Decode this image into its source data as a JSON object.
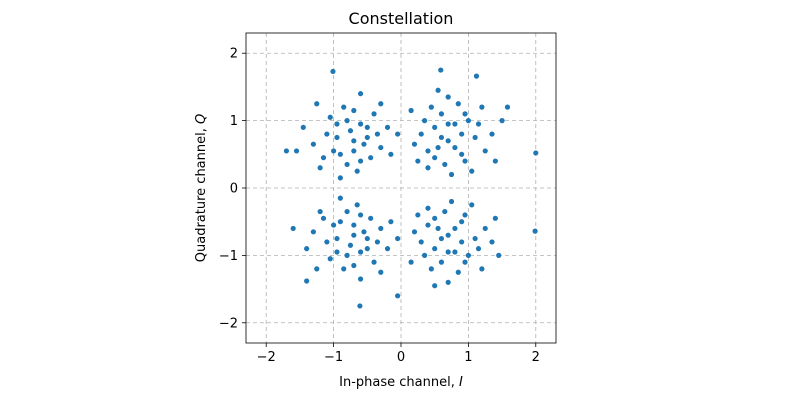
{
  "chart_data": {
    "type": "scatter",
    "title": "Constellation",
    "xlabel": "In-phase channel, I",
    "xlabel_text": "In-phase channel, ",
    "xlabel_var": "I",
    "ylabel_text": "Quadrature channel, ",
    "ylabel_var": "Q",
    "xlim": [
      -2.3,
      2.3
    ],
    "ylim": [
      -2.3,
      2.3
    ],
    "xticks": [
      -2,
      -1,
      0,
      1,
      2
    ],
    "yticks": [
      -2,
      -1,
      0,
      1,
      2
    ],
    "xtick_labels": [
      "−2",
      "−1",
      "0",
      "1",
      "2"
    ],
    "ytick_labels": [
      "−2",
      "−1",
      "0",
      "1",
      "2"
    ],
    "grid": true,
    "color": "#1f77b4",
    "points": [
      [
        -0.7,
        0.7
      ],
      [
        -0.9,
        0.5
      ],
      [
        -0.5,
        0.9
      ],
      [
        -1.1,
        0.8
      ],
      [
        -0.3,
        0.6
      ],
      [
        -0.8,
        1.0
      ],
      [
        -0.6,
        0.4
      ],
      [
        -1.2,
        0.3
      ],
      [
        -0.4,
        1.1
      ],
      [
        -0.95,
        0.75
      ],
      [
        -0.55,
        0.65
      ],
      [
        -0.75,
        0.85
      ],
      [
        -1.0,
        0.55
      ],
      [
        -0.65,
        0.25
      ],
      [
        -0.2,
        0.9
      ],
      [
        -1.3,
        0.65
      ],
      [
        -0.85,
        1.2
      ],
      [
        -0.45,
        0.45
      ],
      [
        -0.7,
        0.55
      ],
      [
        -1.05,
        1.05
      ],
      [
        -0.3,
        1.25
      ],
      [
        -0.6,
        1.4
      ],
      [
        -1.45,
        0.9
      ],
      [
        -0.15,
        0.5
      ],
      [
        -0.9,
        0.15
      ],
      [
        -0.5,
        0.75
      ],
      [
        -0.8,
        0.35
      ],
      [
        -1.15,
        0.45
      ],
      [
        -0.35,
        0.8
      ],
      [
        -0.7,
        1.15
      ],
      [
        -1.55,
        0.55
      ],
      [
        -0.05,
        0.8
      ],
      [
        -1.25,
        1.25
      ],
      [
        -0.6,
        0.95
      ],
      [
        -0.95,
        0.95
      ],
      [
        0.7,
        0.7
      ],
      [
        0.5,
        0.9
      ],
      [
        0.9,
        0.5
      ],
      [
        0.6,
        1.1
      ],
      [
        1.1,
        0.75
      ],
      [
        0.4,
        0.55
      ],
      [
        0.8,
        0.95
      ],
      [
        0.3,
        0.8
      ],
      [
        1.0,
        1.0
      ],
      [
        0.65,
        0.35
      ],
      [
        1.25,
        0.55
      ],
      [
        0.55,
        0.6
      ],
      [
        0.85,
        1.25
      ],
      [
        0.45,
        1.2
      ],
      [
        0.75,
        0.2
      ],
      [
        1.15,
        0.95
      ],
      [
        0.2,
        0.65
      ],
      [
        0.95,
        0.4
      ],
      [
        0.6,
        0.75
      ],
      [
        1.35,
        0.8
      ],
      [
        0.35,
        1.0
      ],
      [
        0.7,
        1.35
      ],
      [
        1.05,
        0.25
      ],
      [
        0.15,
        1.15
      ],
      [
        0.8,
        0.6
      ],
      [
        1.5,
        1.0
      ],
      [
        0.5,
        0.45
      ],
      [
        0.9,
        0.8
      ],
      [
        1.2,
        1.2
      ],
      [
        0.4,
        0.3
      ],
      [
        0.7,
        0.95
      ],
      [
        1.4,
        0.4
      ],
      [
        0.25,
        0.4
      ],
      [
        0.95,
        1.1
      ],
      [
        0.55,
        1.45
      ],
      [
        0.7,
        -0.7
      ],
      [
        0.5,
        -0.9
      ],
      [
        0.9,
        -0.5
      ],
      [
        0.6,
        -1.1
      ],
      [
        1.1,
        -0.75
      ],
      [
        0.4,
        -0.55
      ],
      [
        0.8,
        -0.95
      ],
      [
        0.3,
        -0.8
      ],
      [
        1.0,
        -1.0
      ],
      [
        0.65,
        -0.35
      ],
      [
        1.25,
        -0.6
      ],
      [
        0.55,
        -0.6
      ],
      [
        0.85,
        -1.25
      ],
      [
        0.45,
        -1.2
      ],
      [
        0.75,
        -0.2
      ],
      [
        1.15,
        -0.9
      ],
      [
        0.2,
        -0.65
      ],
      [
        0.95,
        -0.4
      ],
      [
        0.6,
        -0.75
      ],
      [
        1.35,
        -0.8
      ],
      [
        0.35,
        -1.0
      ],
      [
        0.7,
        -1.4
      ],
      [
        1.05,
        -0.25
      ],
      [
        0.15,
        -1.1
      ],
      [
        0.8,
        -0.6
      ],
      [
        1.45,
        -1.0
      ],
      [
        0.5,
        -0.45
      ],
      [
        0.9,
        -0.8
      ],
      [
        1.2,
        -1.2
      ],
      [
        0.4,
        -0.3
      ],
      [
        0.7,
        -0.95
      ],
      [
        1.4,
        -0.45
      ],
      [
        0.25,
        -0.4
      ],
      [
        0.95,
        -1.1
      ],
      [
        0.5,
        -1.45
      ],
      [
        -0.7,
        -0.7
      ],
      [
        -0.9,
        -0.5
      ],
      [
        -0.5,
        -0.9
      ],
      [
        -1.1,
        -0.8
      ],
      [
        -0.3,
        -0.6
      ],
      [
        -0.8,
        -1.0
      ],
      [
        -0.6,
        -0.4
      ],
      [
        -1.2,
        -0.35
      ],
      [
        -0.4,
        -1.1
      ],
      [
        -0.95,
        -0.75
      ],
      [
        -0.55,
        -0.65
      ],
      [
        -0.75,
        -0.85
      ],
      [
        -1.0,
        -0.55
      ],
      [
        -0.65,
        -0.25
      ],
      [
        -0.2,
        -0.9
      ],
      [
        -1.3,
        -0.65
      ],
      [
        -0.85,
        -1.2
      ],
      [
        -0.45,
        -0.45
      ],
      [
        -0.7,
        -0.55
      ],
      [
        -1.05,
        -1.05
      ],
      [
        -0.3,
        -1.25
      ],
      [
        -0.6,
        -1.35
      ],
      [
        -1.4,
        -0.9
      ],
      [
        -0.15,
        -0.5
      ],
      [
        -0.9,
        -0.15
      ],
      [
        -0.5,
        -0.75
      ],
      [
        -0.8,
        -0.35
      ],
      [
        -1.15,
        -0.45
      ],
      [
        -0.35,
        -0.8
      ],
      [
        -0.7,
        -1.15
      ],
      [
        -1.6,
        -0.6
      ],
      [
        -0.05,
        -0.75
      ],
      [
        -1.25,
        -1.2
      ],
      [
        -0.6,
        -0.95
      ],
      [
        -0.95,
        -0.95
      ],
      [
        2.0,
        0.52
      ],
      [
        1.99,
        -0.64
      ],
      [
        -1.01,
        1.73
      ],
      [
        0.59,
        1.75
      ],
      [
        1.12,
        1.66
      ],
      [
        -1.7,
        0.55
      ],
      [
        -0.61,
        -1.75
      ],
      [
        -0.05,
        -1.6
      ],
      [
        -1.4,
        -1.38
      ],
      [
        1.58,
        1.2
      ]
    ]
  }
}
